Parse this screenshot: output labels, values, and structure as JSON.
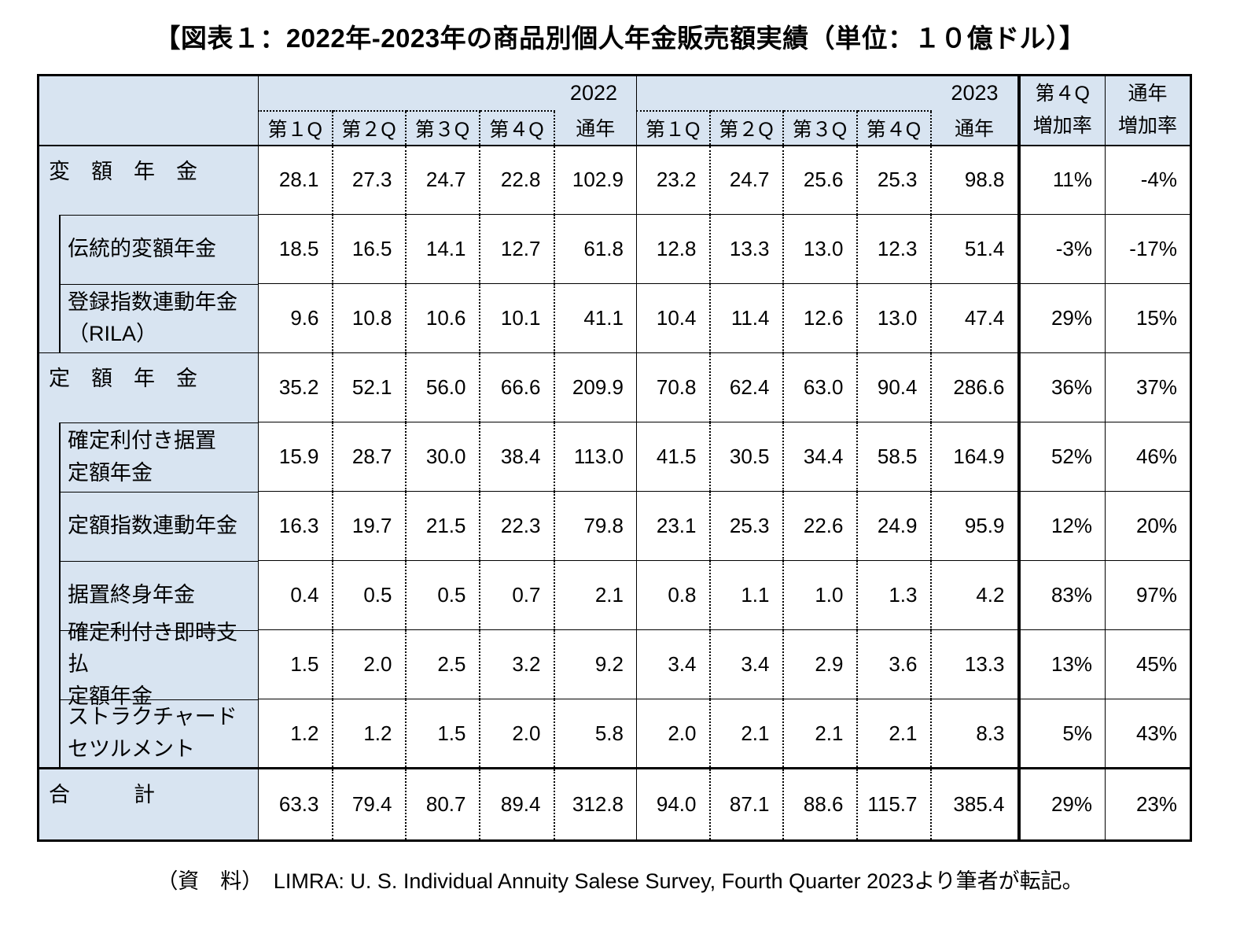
{
  "title": "【図表１：2022年-2023年の商品別個人年金販売額実績（単位：１０億ドル）】",
  "source": "（資　料）　LIMRA: U. S. Individual Annuity Salese Survey, Fourth Quarter 2023より筆者が転記。",
  "table": {
    "year_2022": "2022",
    "year_2023": "2023",
    "quarter_headers": [
      "第１Q",
      "第２Q",
      "第３Q",
      "第４Q",
      "通年"
    ],
    "growth_headers": [
      {
        "line1": "第４Q",
        "line2": "増加率"
      },
      {
        "line1": "通年",
        "line2": "増加率"
      }
    ],
    "rows": [
      {
        "label": "変　額　年　金",
        "indent": false,
        "total": false,
        "values": [
          "28.1",
          "27.3",
          "24.7",
          "22.8",
          "102.9",
          "23.2",
          "24.7",
          "25.6",
          "25.3",
          "98.8",
          "11%",
          "-4%"
        ]
      },
      {
        "label": "伝統的変額年金",
        "indent": true,
        "total": false,
        "values": [
          "18.5",
          "16.5",
          "14.1",
          "12.7",
          "61.8",
          "12.8",
          "13.3",
          "13.0",
          "12.3",
          "51.4",
          "-3%",
          "-17%"
        ]
      },
      {
        "label": "登録指数連動年金",
        "label2": "（RILA）",
        "indent": true,
        "total": false,
        "values": [
          "9.6",
          "10.8",
          "10.6",
          "10.1",
          "41.1",
          "10.4",
          "11.4",
          "12.6",
          "13.0",
          "47.4",
          "29%",
          "15%"
        ]
      },
      {
        "label": "定　額　年　金",
        "indent": false,
        "total": false,
        "values": [
          "35.2",
          "52.1",
          "56.0",
          "66.6",
          "209.9",
          "70.8",
          "62.4",
          "63.0",
          "90.4",
          "286.6",
          "36%",
          "37%"
        ]
      },
      {
        "label": "確定利付き据置",
        "label2": "定額年金",
        "indent": true,
        "total": false,
        "values": [
          "15.9",
          "28.7",
          "30.0",
          "38.4",
          "113.0",
          "41.5",
          "30.5",
          "34.4",
          "58.5",
          "164.9",
          "52%",
          "46%"
        ]
      },
      {
        "label": "定額指数連動年金",
        "indent": true,
        "total": false,
        "values": [
          "16.3",
          "19.7",
          "21.5",
          "22.3",
          "79.8",
          "23.1",
          "25.3",
          "22.6",
          "24.9",
          "95.9",
          "12%",
          "20%"
        ]
      },
      {
        "label": "据置終身年金",
        "indent": true,
        "total": false,
        "values": [
          "0.4",
          "0.5",
          "0.5",
          "0.7",
          "2.1",
          "0.8",
          "1.1",
          "1.0",
          "1.3",
          "4.2",
          "83%",
          "97%"
        ]
      },
      {
        "label": "確定利付き即時支払",
        "label2": "定額年金",
        "indent": true,
        "total": false,
        "values": [
          "1.5",
          "2.0",
          "2.5",
          "3.2",
          "9.2",
          "3.4",
          "3.4",
          "2.9",
          "3.6",
          "13.3",
          "13%",
          "45%"
        ]
      },
      {
        "label": "ストラクチャード",
        "label2": "セツルメント",
        "indent": true,
        "total": false,
        "values": [
          "1.2",
          "1.2",
          "1.5",
          "2.0",
          "5.8",
          "2.0",
          "2.1",
          "2.1",
          "2.1",
          "8.3",
          "5%",
          "43%"
        ]
      },
      {
        "label": "合　　　計",
        "indent": false,
        "total": true,
        "values": [
          "63.3",
          "79.4",
          "80.7",
          "89.4",
          "312.8",
          "94.0",
          "87.1",
          "88.6",
          "115.7",
          "385.4",
          "29%",
          "23%"
        ]
      }
    ]
  }
}
